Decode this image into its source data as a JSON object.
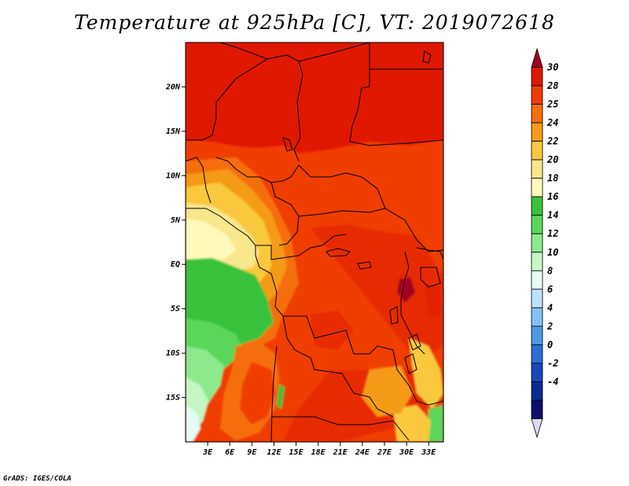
{
  "title": "Temperature at 925hPa [C], VT: 2019072618",
  "credit": "GrADS: IGES/COLA",
  "map": {
    "lon_range": [
      0,
      35
    ],
    "lat_range": [
      -20,
      25
    ],
    "lat_ticks": [
      "20N",
      "15N",
      "10N",
      "5N",
      "EQ",
      "5S",
      "10S",
      "15S"
    ],
    "lon_ticks": [
      "3E",
      "6E",
      "9E",
      "12E",
      "15E",
      "18E",
      "21E",
      "24E",
      "27E",
      "30E",
      "33E"
    ]
  },
  "colorbar": {
    "labels": [
      "30",
      "28",
      "25",
      "24",
      "22",
      "20",
      "18",
      "16",
      "14",
      "12",
      "10",
      "8",
      "6",
      "4",
      "2",
      "0",
      "-2",
      "-4"
    ],
    "colors": [
      "#a50021",
      "#e01800",
      "#f03c00",
      "#f56e0a",
      "#f59a14",
      "#fac83c",
      "#fae68c",
      "#fffaba",
      "#38c23a",
      "#5ad75a",
      "#8cea8c",
      "#c4f7c4",
      "#e6fbf4",
      "#bae2f8",
      "#82c2f2",
      "#4e9ae4",
      "#2a6ed6",
      "#1648b8",
      "#082c92",
      "#0e0e6e",
      "#dcd8f2"
    ]
  }
}
